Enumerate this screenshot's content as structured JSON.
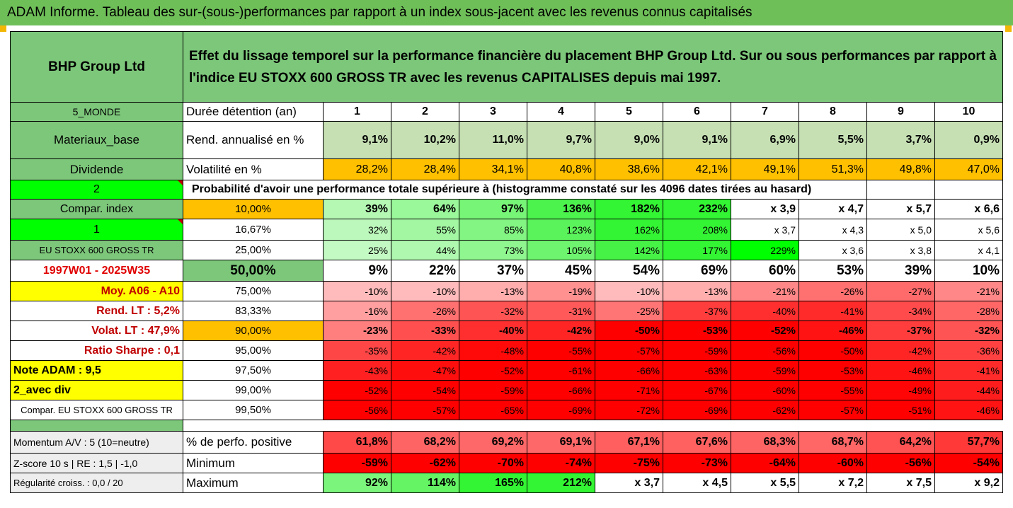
{
  "banner": "ADAM Informe. Tableau des sur-(sous-)performances par rapport à un index sous-jacent avec les revenus connus capitalisés",
  "company": "BHP Group Ltd",
  "description": "Effet du lissage temporel sur la performance financière du placement BHP Group Ltd. Sur ou sous performances par rapport à l'indice EU STOXX 600 GROSS TR avec les revenus CAPITALISES depuis mai 1997.",
  "probability_heading": "Probabilité d'avoir une performance totale supérieure à (histogramme constaté sur les 4096 dates tirées au hasard)",
  "colors": {
    "banner": "#6fbf59",
    "header_green": "#7dc77b",
    "light_green": "#c6e0b4",
    "orange": "#ffc000",
    "bright_green": "#00ff00",
    "yellow": "#ffff00",
    "red": "#ff0000",
    "date_red": "#e00000"
  },
  "rows": [
    {
      "label": "5_MONDE",
      "key": "Durée détention (an)",
      "cells": [
        "1",
        "2",
        "3",
        "4",
        "5",
        "6",
        "7",
        "8",
        "9",
        "10"
      ]
    },
    {
      "label": "Materiaux_base",
      "key": "Rend. annualisé en %",
      "cells": [
        "9,1%",
        "10,2%",
        "11,0%",
        "9,7%",
        "9,0%",
        "9,1%",
        "6,9%",
        "5,5%",
        "3,7%",
        "0,9%"
      ]
    },
    {
      "label": "Dividende",
      "key": "Volatilité en %",
      "cells": [
        "28,2%",
        "28,4%",
        "34,1%",
        "40,8%",
        "38,6%",
        "42,1%",
        "49,1%",
        "51,3%",
        "49,8%",
        "47,0%"
      ]
    },
    {
      "label": "2",
      "key": "",
      "cells": []
    },
    {
      "label": "Compar. index",
      "key": "10,00%",
      "cells": [
        "39%",
        "64%",
        "97%",
        "136%",
        "182%",
        "232%",
        "x 3,9",
        "x 4,7",
        "x 5,7",
        "x 6,6"
      ]
    },
    {
      "label": "1",
      "key": "16,67%",
      "cells": [
        "32%",
        "55%",
        "85%",
        "123%",
        "162%",
        "208%",
        "x 3,7",
        "x 4,3",
        "x 5,0",
        "x 5,6"
      ]
    },
    {
      "label": "EU STOXX 600 GROSS TR",
      "key": "25,00%",
      "cells": [
        "25%",
        "44%",
        "73%",
        "105%",
        "142%",
        "177%",
        "229%",
        "x 3,6",
        "x 3,8",
        "x 4,1"
      ]
    },
    {
      "label": "1997W01 - 2025W35",
      "key": "50,00%",
      "cells": [
        "9%",
        "22%",
        "37%",
        "45%",
        "54%",
        "69%",
        "60%",
        "53%",
        "39%",
        "10%"
      ]
    },
    {
      "label": "Moy. A06 - A10",
      "key": "75,00%",
      "cells": [
        "-10%",
        "-10%",
        "-13%",
        "-19%",
        "-10%",
        "-13%",
        "-21%",
        "-26%",
        "-27%",
        "-21%"
      ]
    },
    {
      "label": "Rend. LT :   5,2%",
      "key": "83,33%",
      "cells": [
        "-16%",
        "-26%",
        "-32%",
        "-31%",
        "-25%",
        "-37%",
        "-40%",
        "-41%",
        "-34%",
        "-28%"
      ]
    },
    {
      "label": "Volat. LT :   47,9%",
      "key": "90,00%",
      "cells": [
        "-23%",
        "-33%",
        "-40%",
        "-42%",
        "-50%",
        "-53%",
        "-52%",
        "-46%",
        "-37%",
        "-32%"
      ]
    },
    {
      "label": "Ratio Sharpe :   0,1",
      "key": "95,00%",
      "cells": [
        "-35%",
        "-42%",
        "-48%",
        "-55%",
        "-57%",
        "-59%",
        "-56%",
        "-50%",
        "-42%",
        "-36%"
      ]
    },
    {
      "label": "Note ADAM : 9,5",
      "key": "97,50%",
      "cells": [
        "-43%",
        "-47%",
        "-52%",
        "-61%",
        "-66%",
        "-63%",
        "-59%",
        "-53%",
        "-46%",
        "-41%"
      ]
    },
    {
      "label": "2_avec div",
      "key": "99,00%",
      "cells": [
        "-52%",
        "-54%",
        "-59%",
        "-66%",
        "-71%",
        "-67%",
        "-60%",
        "-55%",
        "-49%",
        "-44%"
      ]
    },
    {
      "label": "Compar. EU STOXX 600 GROSS TR",
      "key": "99,50%",
      "cells": [
        "-56%",
        "-57%",
        "-65%",
        "-69%",
        "-72%",
        "-69%",
        "-62%",
        "-57%",
        "-51%",
        "-46%"
      ]
    },
    {
      "label": "",
      "key": "",
      "cells": []
    },
    {
      "label": "Momentum A/V : 5 (10=neutre)",
      "key": "% de perfo. positive",
      "cells": [
        "61,8%",
        "68,2%",
        "69,2%",
        "69,1%",
        "67,1%",
        "67,6%",
        "68,3%",
        "68,7%",
        "64,2%",
        "57,7%"
      ]
    },
    {
      "label": "Z-score 10 s  |  RE : 1,5  |  -1,0",
      "key": "Minimum",
      "cells": [
        "-59%",
        "-62%",
        "-70%",
        "-74%",
        "-75%",
        "-73%",
        "-64%",
        "-60%",
        "-56%",
        "-54%"
      ]
    },
    {
      "label": "Régularité croiss. : 0,0 / 20",
      "key": "Maximum",
      "cells": [
        "92%",
        "114%",
        "165%",
        "212%",
        "x 3,7",
        "x 4,5",
        "x 5,5",
        "x 7,2",
        "x 7,5",
        "x 9,2"
      ]
    }
  ]
}
